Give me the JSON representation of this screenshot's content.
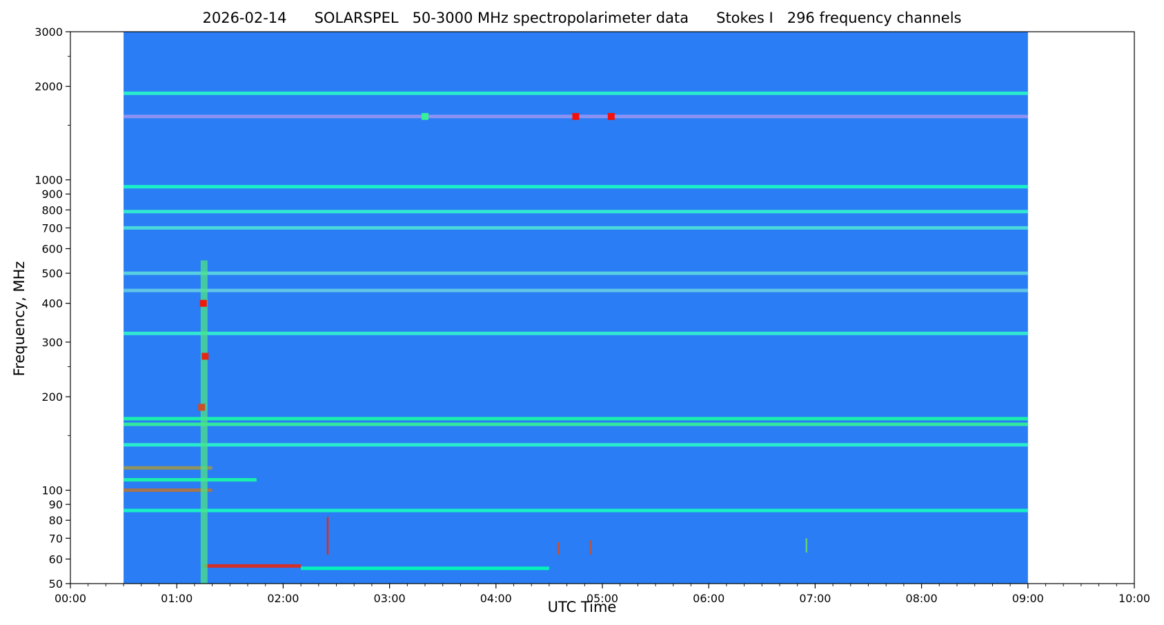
{
  "title": "2026-02-14      SOLARSPEL   50-3000 MHz spectropolarimeter data      Stokes I   296 frequency channels",
  "chart_data": {
    "type": "heatmap",
    "xlabel": "UTC Time",
    "ylabel": "Frequency, MHz",
    "x_ticks": [
      "00:00",
      "01:00",
      "02:00",
      "03:00",
      "04:00",
      "05:00",
      "06:00",
      "07:00",
      "08:00",
      "09:00",
      "10:00"
    ],
    "xlim": [
      "00:00",
      "10:00"
    ],
    "y_scale": "log",
    "ylim": [
      50,
      3000
    ],
    "y_ticks": [
      50,
      60,
      70,
      80,
      90,
      100,
      200,
      300,
      400,
      500,
      600,
      700,
      800,
      900,
      1000,
      2000,
      3000
    ],
    "data_time_range": [
      "00:30",
      "09:00"
    ],
    "colormap": "rainbow",
    "background_color": "#2a7df5",
    "features": [
      {
        "type": "band",
        "freq": 1900,
        "start": "00:30",
        "end": "09:00",
        "intensity": 0.42
      },
      {
        "type": "band",
        "freq": 1600,
        "start": "00:30",
        "end": "09:00",
        "intensity": 0.2
      },
      {
        "type": "band",
        "freq": 950,
        "start": "00:30",
        "end": "09:00",
        "intensity": 0.45
      },
      {
        "type": "band",
        "freq": 790,
        "start": "00:30",
        "end": "09:00",
        "intensity": 0.4
      },
      {
        "type": "band",
        "freq": 700,
        "start": "00:30",
        "end": "09:00",
        "intensity": 0.35
      },
      {
        "type": "band",
        "freq": 500,
        "start": "00:30",
        "end": "09:00",
        "intensity": 0.32
      },
      {
        "type": "band",
        "freq": 440,
        "start": "00:30",
        "end": "09:00",
        "intensity": 0.3
      },
      {
        "type": "band",
        "freq": 320,
        "start": "00:30",
        "end": "09:00",
        "intensity": 0.4
      },
      {
        "type": "band",
        "freq": 170,
        "start": "00:30",
        "end": "09:00",
        "intensity": 0.55
      },
      {
        "type": "band",
        "freq": 163,
        "start": "00:30",
        "end": "09:00",
        "intensity": 0.6
      },
      {
        "type": "band",
        "freq": 140,
        "start": "00:30",
        "end": "09:00",
        "intensity": 0.42
      },
      {
        "type": "band",
        "freq": 118,
        "start": "00:30",
        "end": "01:20",
        "intensity": 0.8
      },
      {
        "type": "band",
        "freq": 108,
        "start": "00:30",
        "end": "01:45",
        "intensity": 0.55
      },
      {
        "type": "band",
        "freq": 100,
        "start": "00:30",
        "end": "01:20",
        "intensity": 0.85
      },
      {
        "type": "band",
        "freq": 86,
        "start": "00:30",
        "end": "09:00",
        "intensity": 0.45
      },
      {
        "type": "band",
        "freq": 57,
        "start": "01:15",
        "end": "02:10",
        "intensity": 0.95
      },
      {
        "type": "band",
        "freq": 56,
        "start": "02:10",
        "end": "04:30",
        "intensity": 0.5
      },
      {
        "type": "burst",
        "time": "01:15",
        "freq_low": 50,
        "freq_high": 550,
        "intensity": 0.65
      },
      {
        "type": "blob",
        "time": "01:15",
        "freq": 400,
        "intensity": 0.97
      },
      {
        "type": "blob",
        "time": "01:16",
        "freq": 270,
        "intensity": 0.95
      },
      {
        "type": "blob",
        "time": "01:14",
        "freq": 185,
        "intensity": 0.9
      },
      {
        "type": "blob",
        "time": "04:45",
        "freq": 1600,
        "intensity": 0.98
      },
      {
        "type": "blob",
        "time": "05:05",
        "freq": 1600,
        "intensity": 0.98
      },
      {
        "type": "blob",
        "time": "03:20",
        "freq": 1600,
        "intensity": 0.6
      },
      {
        "type": "spike",
        "time": "02:25",
        "freq_low": 62,
        "freq_high": 82,
        "intensity": 0.95
      },
      {
        "type": "spike",
        "time": "04:35",
        "freq_low": 62,
        "freq_high": 68,
        "intensity": 0.9
      },
      {
        "type": "spike",
        "time": "04:53",
        "freq_low": 62,
        "freq_high": 69,
        "intensity": 0.9
      },
      {
        "type": "spike",
        "time": "06:55",
        "freq_low": 63,
        "freq_high": 70,
        "intensity": 0.7
      }
    ]
  }
}
